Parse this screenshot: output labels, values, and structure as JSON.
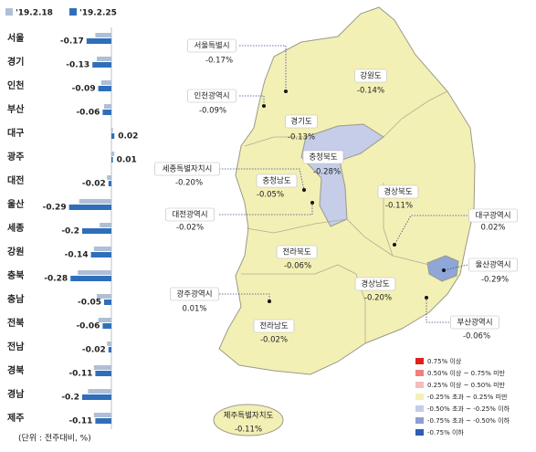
{
  "chart_data": {
    "type": "bar",
    "orientation": "horizontal",
    "categories": [
      "서울",
      "경기",
      "인천",
      "부산",
      "대구",
      "광주",
      "대전",
      "울산",
      "세종",
      "강원",
      "충북",
      "충남",
      "전북",
      "전남",
      "경북",
      "경남",
      "제주"
    ],
    "series": [
      {
        "name": "'19.2.18",
        "color": "#aebfd6",
        "values": [
          -0.11,
          -0.1,
          -0.07,
          -0.05,
          0.01,
          0.02,
          -0.03,
          -0.22,
          -0.08,
          -0.12,
          -0.23,
          -0.1,
          -0.09,
          -0.03,
          -0.12,
          -0.16,
          -0.12
        ]
      },
      {
        "name": "'19.2.25",
        "color": "#2f6fba",
        "values": [
          -0.17,
          -0.13,
          -0.09,
          -0.06,
          0.02,
          0.01,
          -0.02,
          -0.29,
          -0.2,
          -0.14,
          -0.28,
          -0.05,
          -0.06,
          -0.02,
          -0.11,
          -0.2,
          -0.11
        ]
      }
    ],
    "footnote": "(단위 : 전주대비, %)"
  },
  "map": {
    "regions": [
      {
        "name": "서울특별시",
        "value": "-0.17%"
      },
      {
        "name": "인천광역시",
        "value": "-0.09%"
      },
      {
        "name": "경기도",
        "value": "-0.13%"
      },
      {
        "name": "강원도",
        "value": "-0.14%"
      },
      {
        "name": "충청북도",
        "value": "-0.28%"
      },
      {
        "name": "세종특별자치시",
        "value": "-0.20%"
      },
      {
        "name": "충청남도",
        "value": "-0.05%"
      },
      {
        "name": "대전광역시",
        "value": "-0.02%"
      },
      {
        "name": "경상북도",
        "value": "-0.11%"
      },
      {
        "name": "대구광역시",
        "value": "0.02%"
      },
      {
        "name": "전라북도",
        "value": "-0.06%"
      },
      {
        "name": "울산광역시",
        "value": "-0.29%"
      },
      {
        "name": "광주광역시",
        "value": "0.01%"
      },
      {
        "name": "경상남도",
        "value": "-0.20%"
      },
      {
        "name": "부산광역시",
        "value": "-0.06%"
      },
      {
        "name": "전라남도",
        "value": "-0.02%"
      },
      {
        "name": "제주특별자치도",
        "value": "-0.11%"
      }
    ],
    "legend": [
      {
        "label": "0.75% 이상",
        "color": "#e0201c"
      },
      {
        "label": "0.50% 이상 ~ 0.75% 미만",
        "color": "#f08080"
      },
      {
        "label": "0.25% 이상 ~ 0.50% 미만",
        "color": "#f4bcbc"
      },
      {
        "label": "-0.25% 초과 ~ 0.25% 미만",
        "color": "#f3f0b6"
      },
      {
        "label": "-0.50% 초과 ~ -0.25% 이하",
        "color": "#c5cde8"
      },
      {
        "label": "-0.75% 초과 ~ -0.50% 이하",
        "color": "#8e9fd4"
      },
      {
        "label": "-0.75% 이하",
        "color": "#2e5cb8"
      }
    ]
  }
}
